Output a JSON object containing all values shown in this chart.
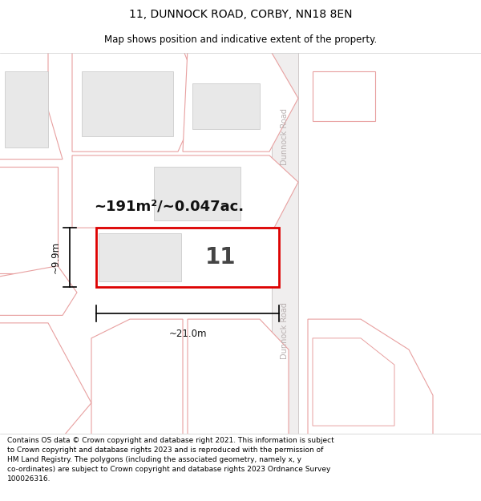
{
  "title": "11, DUNNOCK ROAD, CORBY, NN18 8EN",
  "subtitle": "Map shows position and indicative extent of the property.",
  "footer": "Contains OS data © Crown copyright and database right 2021. This information is subject\nto Crown copyright and database rights 2023 and is reproduced with the permission of\nHM Land Registry. The polygons (including the associated geometry, namely x, y\nco-ordinates) are subject to Crown copyright and database rights 2023 Ordnance Survey\n100026316.",
  "area_text": "~191m²/~0.047ac.",
  "plot_number": "11",
  "width_label": "~21.0m",
  "height_label": "~9.9m",
  "road_label": "Dunnock Road",
  "pink_ec": "#e8a0a0",
  "pink_fc": "#ffffff",
  "gray_fc": "#e8e8e8",
  "gray_ec": "#cccccc",
  "road_fc": "#f0eeee",
  "road_ec": "#cccccc",
  "red_ec": "#dd0000",
  "map_bg": "#ffffff",
  "title_fontsize": 10,
  "subtitle_fontsize": 8.5,
  "footer_fontsize": 6.5,
  "area_fontsize": 13,
  "number_fontsize": 20,
  "dim_fontsize": 8.5
}
